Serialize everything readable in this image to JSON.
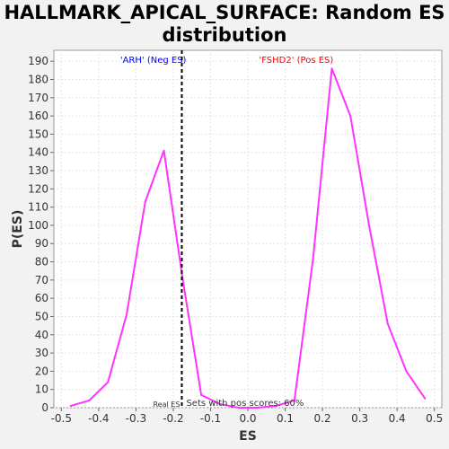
{
  "chart_data": {
    "type": "line",
    "title_line1": "HALLMARK_APICAL_SURFACE: Random ES",
    "title_line2": "distribution",
    "xlabel": "ES",
    "ylabel": "P(ES)",
    "xlim": [
      -0.52,
      0.52
    ],
    "ylim": [
      0,
      196
    ],
    "x_ticks": [
      -0.5,
      -0.4,
      -0.3,
      -0.2,
      -0.1,
      0.0,
      0.1,
      0.2,
      0.3,
      0.4,
      0.5
    ],
    "y_ticks": [
      0,
      10,
      20,
      30,
      40,
      50,
      60,
      70,
      80,
      90,
      100,
      110,
      120,
      130,
      140,
      150,
      160,
      170,
      180,
      190
    ],
    "grid": true,
    "line_color": "#ff33ff",
    "series": [
      {
        "x": [
          -0.475,
          -0.425,
          -0.375,
          -0.325,
          -0.275,
          -0.225,
          -0.175,
          -0.125,
          -0.075,
          -0.025,
          0.025,
          0.075,
          0.125,
          0.175,
          0.225,
          0.275,
          0.325,
          0.375,
          0.425,
          0.475
        ],
        "y": [
          1,
          4,
          14,
          51,
          113,
          141,
          71,
          7,
          2,
          0,
          0,
          1,
          4,
          82,
          186,
          160,
          100,
          46,
          20,
          5
        ]
      }
    ],
    "real_es_line": {
      "x": -0.177,
      "color": "#000000",
      "style": "dashed"
    },
    "annotations": {
      "neg": {
        "text": "'ARH' (Neg ES)",
        "color": "#0000ff"
      },
      "pos": {
        "text": "'FSHD2' (Pos ES)",
        "color": "#ff0000"
      },
      "real_es": "Real ES",
      "pos_scores": "Sets with pos scores: 60%"
    }
  }
}
